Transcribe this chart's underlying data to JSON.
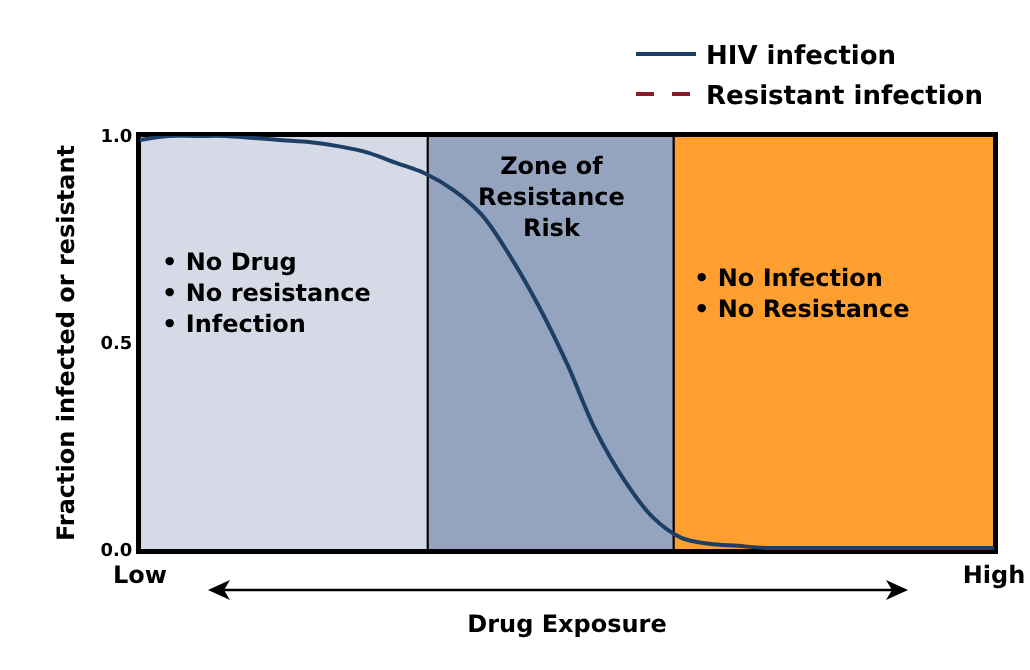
{
  "chart_data": {
    "type": "line",
    "xlabel": "Drug Exposure",
    "ylabel": "Fraction infected or resistant",
    "categories": [
      "Low",
      null,
      null,
      null,
      null,
      null,
      null,
      null,
      null,
      null,
      null,
      null,
      null,
      null,
      null,
      null,
      null,
      null,
      null,
      null,
      null,
      null,
      null,
      null,
      null,
      null,
      null,
      null,
      null,
      null,
      "High"
    ],
    "ylim": [
      0,
      1
    ],
    "yticks": [
      {
        "value": 0,
        "label": "0.0"
      },
      {
        "value": 0.5,
        "label": "0.5"
      },
      {
        "value": 1,
        "label": "1.0"
      }
    ],
    "series": [
      {
        "name": "HIV infection",
        "color": "#1d3f66",
        "line_style": "solid",
        "values": [
          0.99,
          1.0,
          1.0,
          1.0,
          0.995,
          0.99,
          0.985,
          0.975,
          0.96,
          0.935,
          0.91,
          0.87,
          0.81,
          0.71,
          0.59,
          0.45,
          0.29,
          0.17,
          0.08,
          0.03,
          0.015,
          0.01,
          0.005,
          0.005,
          0.005,
          0.005,
          0.005,
          0.005,
          0.005,
          0.005,
          0.005
        ]
      },
      {
        "name": "Resistant infection",
        "color": "#8b1a2b",
        "line_style": "dashed",
        "values": [
          null,
          null,
          null,
          null,
          null,
          null,
          null,
          null,
          null,
          null,
          null,
          null,
          null,
          null,
          null,
          null,
          null,
          null,
          null,
          null,
          null,
          null,
          null,
          null,
          null,
          null,
          null,
          null,
          null,
          null,
          null
        ]
      }
    ],
    "annotations": [
      "• No Drug\n• No resistance\n• Infection",
      "Zone of\nResistance\nRisk",
      "• No Infection\n• No Resistance"
    ],
    "grid": false,
    "legend": "top right",
    "marker": "none"
  }
}
